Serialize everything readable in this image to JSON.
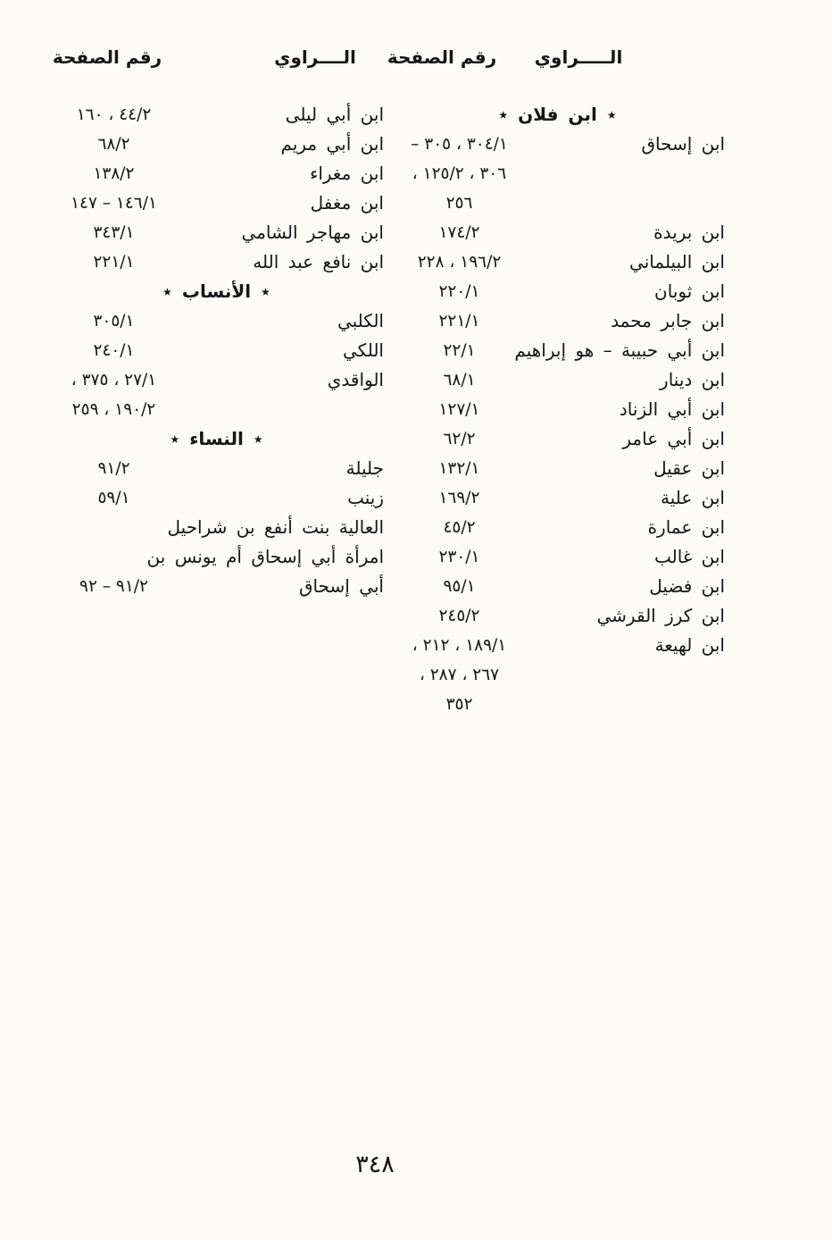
{
  "header": {
    "right_narrator_label": "الـــــراوي",
    "right_page_label": "رقم الصفحة",
    "left_narrator_label": "الــــراوي",
    "left_page_label": "رقم الصفحة"
  },
  "columns": {
    "right_rows": [
      {
        "type": "section",
        "text": "٭ ابن فلان ٭"
      },
      {
        "type": "entry",
        "name": "ابن إسحاق",
        "pages": "٣٠٤/١ ، ٣٠٥ –"
      },
      {
        "type": "entry",
        "name": "",
        "pages": "٣٠٦ ، ١٢٥/٢ ،"
      },
      {
        "type": "entry",
        "name": "",
        "pages": "٢٥٦"
      },
      {
        "type": "entry",
        "name": "ابن بريدة",
        "pages": "١٧٤/٢"
      },
      {
        "type": "entry",
        "name": "ابن البيلماني",
        "pages": "١٩٦/٢ ، ٢٢٨"
      },
      {
        "type": "entry",
        "name": "ابن ثوبان",
        "pages": "٢٢٠/١"
      },
      {
        "type": "entry",
        "name": "ابن جابر محمد",
        "pages": "٢٢١/١"
      },
      {
        "type": "entry",
        "name": "ابن أبي حبيبة – هو إبراهيم",
        "pages": "٢٢/١"
      },
      {
        "type": "entry",
        "name": "ابن دينار",
        "pages": "٦٨/١"
      },
      {
        "type": "entry",
        "name": "ابن أبي الزناد",
        "pages": "١٢٧/١"
      },
      {
        "type": "entry",
        "name": "ابن أبي عامر",
        "pages": "٦٢/٢"
      },
      {
        "type": "entry",
        "name": "ابن عقيل",
        "pages": "١٣٢/١"
      },
      {
        "type": "entry",
        "name": "ابن علية",
        "pages": "١٦٩/٢"
      },
      {
        "type": "entry",
        "name": "ابن عمارة",
        "pages": "٤٥/٢"
      },
      {
        "type": "entry",
        "name": "ابن غالب",
        "pages": "٢٣٠/١"
      },
      {
        "type": "entry",
        "name": "ابن فضيل",
        "pages": "٩٥/١"
      },
      {
        "type": "entry",
        "name": "ابن كرز القرشي",
        "pages": "٢٤٥/٢"
      },
      {
        "type": "entry",
        "name": "ابن لهيعة",
        "pages": "١٨٩/١ ، ٢١٢ ،"
      },
      {
        "type": "entry",
        "name": "",
        "pages": "٢٦٧ ، ٢٨٧ ،"
      },
      {
        "type": "entry",
        "name": "",
        "pages": "٣٥٢"
      }
    ],
    "left_rows": [
      {
        "type": "entry",
        "name": "ابن أبي ليلى",
        "pages": "٤٤/٢ ، ١٦٠"
      },
      {
        "type": "entry",
        "name": "ابن أبي مريم",
        "pages": "٦٨/٢"
      },
      {
        "type": "entry",
        "name": "ابن مغراء",
        "pages": "١٣٨/٢"
      },
      {
        "type": "entry",
        "name": "ابن مغفل",
        "pages": "١٤٦/١ – ١٤٧"
      },
      {
        "type": "entry",
        "name": "ابن مهاجر الشامي",
        "pages": "٣٤٣/١"
      },
      {
        "type": "entry",
        "name": "ابن نافع عبد الله",
        "pages": "٢٢١/١"
      },
      {
        "type": "section",
        "text": "٭ الأنساب ٭"
      },
      {
        "type": "entry",
        "name": "الكلبي",
        "pages": "٣٠٥/١"
      },
      {
        "type": "entry",
        "name": "اللكي",
        "pages": "٢٤٠/١"
      },
      {
        "type": "entry",
        "name": "الواقدي",
        "pages": "٢٧/١ ، ٣٧٥ ،"
      },
      {
        "type": "entry",
        "name": "",
        "pages": "١٩٠/٢ ، ٢٥٩"
      },
      {
        "type": "section",
        "text": "٭ النساء ٭"
      },
      {
        "type": "entry",
        "name": "جليلة",
        "pages": "٩١/٢"
      },
      {
        "type": "entry",
        "name": "زينب",
        "pages": "٥٩/١"
      },
      {
        "type": "entry",
        "name": "العالية بنت أنفع بن شراحيل",
        "pages": ""
      },
      {
        "type": "entry",
        "name": "امرأة أبي إسحاق أم يونس بن",
        "pages": ""
      },
      {
        "type": "entry",
        "name": "أبي إسحاق",
        "pages": "٩١/٢ – ٩٢"
      }
    ]
  },
  "footer_page_number": "٣٤٨"
}
